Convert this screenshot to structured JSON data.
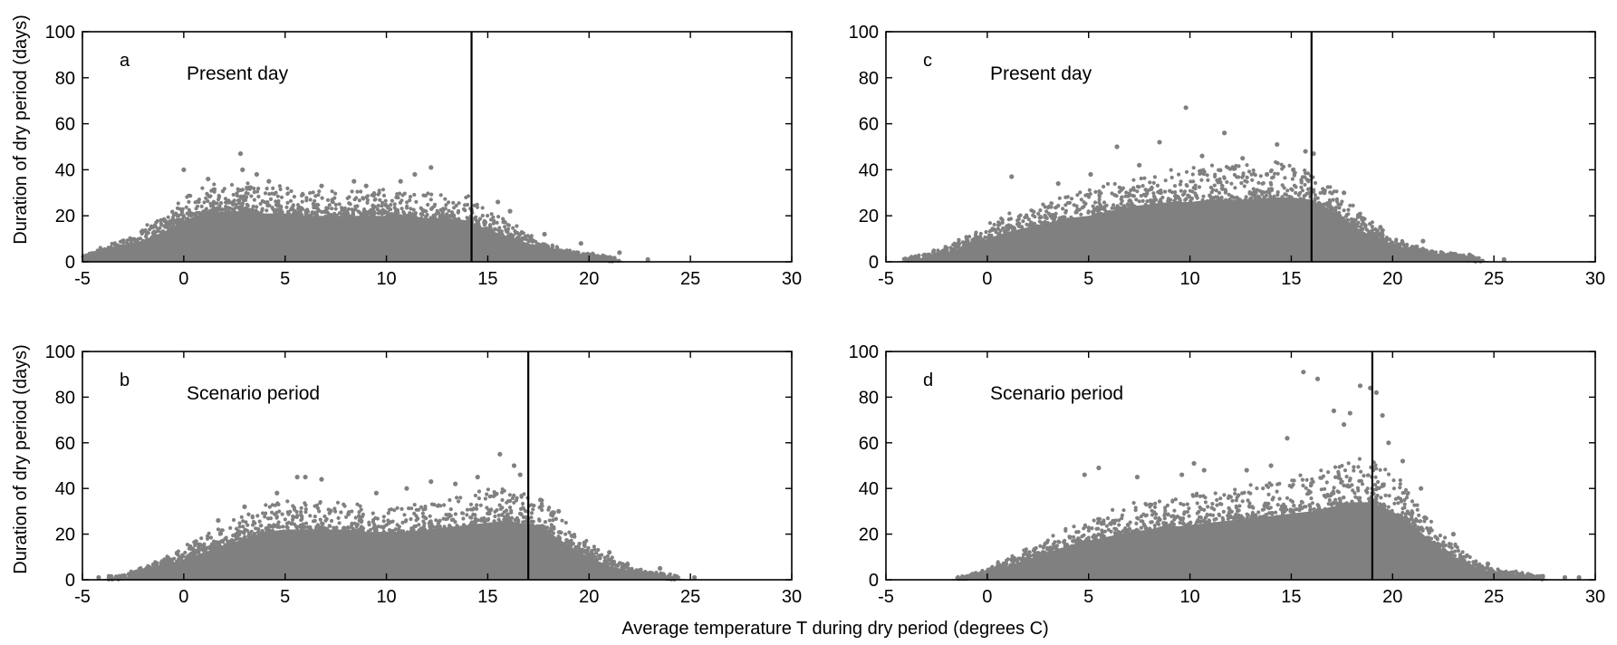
{
  "figure": {
    "xlabel": "Average temperature T during dry period (degrees C)",
    "ylabel": "Duration of dry period (days)"
  },
  "chart_data": [
    {
      "type": "scatter",
      "panel": "a",
      "label": "Present day",
      "xlim": [
        -5,
        30
      ],
      "ylim": [
        0,
        100
      ],
      "xticks": [
        -5,
        0,
        5,
        10,
        15,
        20,
        25,
        30
      ],
      "yticks": [
        0,
        20,
        40,
        60,
        80,
        100
      ],
      "vline_x": 14.2,
      "point_color": "#808080",
      "envelope_x": [
        -5,
        -3,
        -1,
        0,
        1,
        2,
        3,
        4,
        5,
        6,
        7,
        8,
        9,
        10,
        11,
        12,
        13,
        14,
        15,
        16,
        17,
        18,
        19,
        20,
        21,
        22
      ],
      "envelope_y": [
        2,
        6,
        13,
        18,
        21,
        22,
        22,
        21,
        21,
        20,
        20,
        20,
        20,
        20,
        20,
        19,
        19,
        18,
        14,
        11,
        8,
        5,
        3,
        2,
        1,
        0
      ],
      "x": [
        0.0,
        1.2,
        2.8,
        2.9,
        3.6,
        4.2,
        6.8,
        8.4,
        9.0,
        10.7,
        11.4,
        12.2,
        15.5,
        16.1,
        17.8,
        19.6,
        21.5,
        22.9
      ],
      "y": [
        40,
        36,
        47,
        40,
        38,
        35,
        33,
        35,
        33,
        35,
        38,
        41,
        26,
        22,
        12,
        8,
        4,
        1
      ]
    },
    {
      "type": "scatter",
      "panel": "b",
      "label": "Scenario period",
      "xlim": [
        -5,
        30
      ],
      "ylim": [
        0,
        100
      ],
      "xticks": [
        -5,
        0,
        5,
        10,
        15,
        20,
        25,
        30
      ],
      "yticks": [
        0,
        20,
        40,
        60,
        80,
        100
      ],
      "vline_x": 17.0,
      "point_color": "#808080",
      "envelope_x": [
        -4.5,
        -3,
        -2,
        -1,
        0,
        1,
        2,
        3,
        4,
        5,
        6,
        7,
        8,
        9,
        10,
        11,
        12,
        13,
        14,
        15,
        16,
        17,
        18,
        19,
        20,
        21,
        22,
        23,
        24,
        25
      ],
      "envelope_y": [
        0,
        1,
        3,
        6,
        9,
        12,
        15,
        18,
        21,
        22,
        22,
        22,
        22,
        21,
        21,
        21,
        22,
        23,
        24,
        25,
        26,
        24,
        21,
        15,
        10,
        6,
        4,
        2,
        1,
        0
      ],
      "x": [
        -4.2,
        1.7,
        3.0,
        4.6,
        5.6,
        6.0,
        6.8,
        9.5,
        11.0,
        12.2,
        13.4,
        14.5,
        15.6,
        16.3,
        16.6,
        17.6,
        18.5,
        21.0,
        23.5,
        25.2
      ],
      "y": [
        1,
        26,
        32,
        38,
        45,
        45,
        44,
        38,
        40,
        43,
        42,
        45,
        55,
        50,
        46,
        35,
        30,
        12,
        5,
        1
      ]
    },
    {
      "type": "scatter",
      "panel": "c",
      "label": "Present day",
      "xlim": [
        -5,
        30
      ],
      "ylim": [
        0,
        100
      ],
      "xticks": [
        -5,
        0,
        5,
        10,
        15,
        20,
        25,
        30
      ],
      "yticks": [
        0,
        20,
        40,
        60,
        80,
        100
      ],
      "vline_x": 16.0,
      "point_color": "#808080",
      "envelope_x": [
        -4.5,
        -3,
        -2,
        -1,
        0,
        1,
        2,
        3,
        4,
        5,
        6,
        7,
        8,
        9,
        10,
        11,
        12,
        13,
        14,
        15,
        16,
        17,
        18,
        19,
        20,
        21,
        22,
        23,
        24,
        25
      ],
      "envelope_y": [
        0,
        2,
        4,
        7,
        10,
        13,
        15,
        17,
        19,
        20,
        22,
        24,
        25,
        26,
        26,
        27,
        27,
        27,
        28,
        28,
        27,
        22,
        16,
        11,
        7,
        4,
        3,
        2,
        1,
        0
      ],
      "x": [
        1.2,
        3.5,
        5.1,
        6.4,
        7.5,
        8.5,
        9.8,
        10.6,
        11.7,
        12.6,
        13.8,
        14.3,
        15.1,
        15.7,
        16.1,
        17.6,
        19.4,
        21.5,
        23.8,
        25.5
      ],
      "y": [
        37,
        34,
        38,
        50,
        42,
        52,
        67,
        46,
        56,
        45,
        38,
        51,
        40,
        48,
        47,
        30,
        15,
        9,
        3,
        1
      ]
    },
    {
      "type": "scatter",
      "panel": "d",
      "label": "Scenario period",
      "xlim": [
        -5,
        30
      ],
      "ylim": [
        0,
        100
      ],
      "xticks": [
        -5,
        0,
        5,
        10,
        15,
        20,
        25,
        30
      ],
      "yticks": [
        0,
        20,
        40,
        60,
        80,
        100
      ],
      "vline_x": 19.0,
      "point_color": "#808080",
      "envelope_x": [
        -2,
        -1,
        0,
        1,
        2,
        3,
        4,
        5,
        6,
        7,
        8,
        9,
        10,
        11,
        12,
        13,
        14,
        15,
        16,
        17,
        18,
        19,
        20,
        21,
        22,
        23,
        24,
        25,
        26,
        27,
        28,
        29
      ],
      "envelope_y": [
        0,
        1,
        3,
        6,
        9,
        12,
        15,
        17,
        19,
        21,
        22,
        23,
        24,
        25,
        26,
        27,
        28,
        29,
        30,
        32,
        34,
        34,
        30,
        24,
        16,
        10,
        6,
        3,
        2,
        1,
        0,
        0
      ],
      "x": [
        4.8,
        5.5,
        7.4,
        9.6,
        10.2,
        10.7,
        12.8,
        14.0,
        14.8,
        15.6,
        16.3,
        17.1,
        17.6,
        17.9,
        18.4,
        18.9,
        19.2,
        19.5,
        19.8,
        20.5,
        21.4,
        23.0,
        24.7,
        26.8,
        28.5,
        29.2
      ],
      "y": [
        46,
        49,
        45,
        46,
        51,
        48,
        48,
        50,
        62,
        91,
        88,
        74,
        68,
        73,
        85,
        84,
        82,
        72,
        60,
        52,
        40,
        20,
        7,
        2,
        1,
        1
      ]
    }
  ]
}
